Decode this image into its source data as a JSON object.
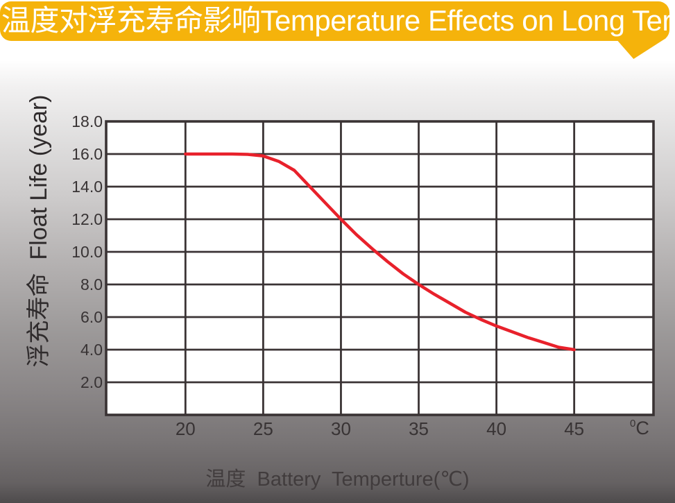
{
  "banner": {
    "title": "温度对浮充寿命影响Temperature Effects on Long Term Float Life",
    "bg_color": "#F5B30B",
    "text_color": "#FFFFFF"
  },
  "chart_data": {
    "type": "line",
    "title": "温度对浮充寿命影响 Temperature Effects on Long Term Float Life",
    "xlabel": "温度  Battery  Temperture(℃)",
    "ylabel": "浮充寿命  Float Life (year)",
    "x_unit": {
      "sup": "0",
      "main": "C"
    },
    "x_ticks": [
      20,
      25,
      30,
      35,
      40,
      45
    ],
    "y_tick_labels": [
      "18.0",
      "16.0",
      "14.0",
      "12.0",
      "10.0",
      "8.0",
      "6.0",
      "4.0",
      "2.0"
    ],
    "y_gridline_values": [
      16,
      14,
      12,
      10,
      8,
      6,
      4,
      2
    ],
    "xlim": [
      14.9,
      50.1
    ],
    "ylim": [
      0,
      18
    ],
    "grid": true,
    "legend_position": "none",
    "plot_bg": "#FFFFFF",
    "grid_color": "#3A3334",
    "series": [
      {
        "name": "float-life-vs-temperature",
        "color": "#E8212B",
        "points": [
          [
            20,
            16.0
          ],
          [
            21,
            16.0
          ],
          [
            22,
            16.0
          ],
          [
            23,
            16.0
          ],
          [
            24,
            15.98
          ],
          [
            25,
            15.88
          ],
          [
            26,
            15.55
          ],
          [
            27,
            15.0
          ],
          [
            28,
            14.0
          ],
          [
            29,
            13.0
          ],
          [
            30,
            12.0
          ],
          [
            31,
            11.05
          ],
          [
            32,
            10.2
          ],
          [
            33,
            9.4
          ],
          [
            34,
            8.65
          ],
          [
            35,
            8.0
          ],
          [
            36,
            7.4
          ],
          [
            37,
            6.85
          ],
          [
            38,
            6.3
          ],
          [
            39,
            5.85
          ],
          [
            40,
            5.45
          ],
          [
            41,
            5.1
          ],
          [
            42,
            4.75
          ],
          [
            43,
            4.45
          ],
          [
            44,
            4.15
          ],
          [
            45,
            4.0
          ]
        ]
      }
    ]
  }
}
